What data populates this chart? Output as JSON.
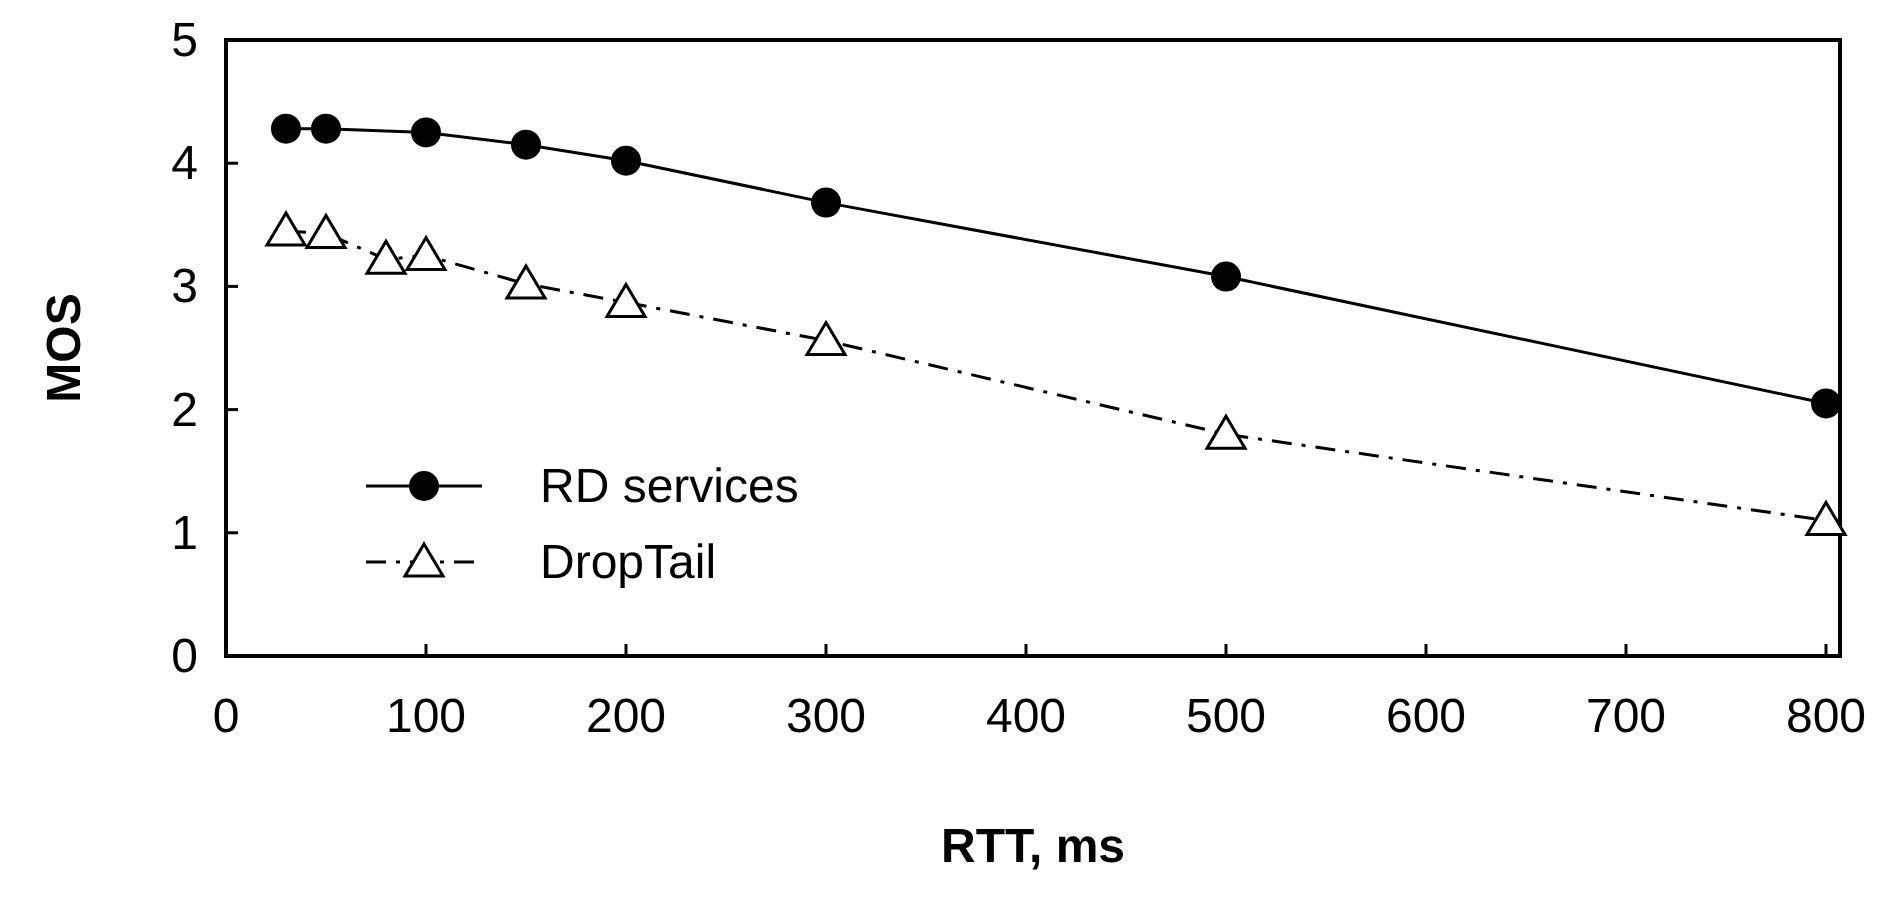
{
  "chart_data": {
    "type": "line",
    "xlabel": "RTT, ms",
    "ylabel": "MOS",
    "xlim": [
      0,
      807
    ],
    "xticks": [
      0,
      100,
      200,
      300,
      400,
      500,
      600,
      700,
      800
    ],
    "ylim": [
      0,
      5
    ],
    "yticks": [
      0,
      1,
      2,
      3,
      4,
      5
    ],
    "grid": false,
    "legend": "bottom left",
    "series": [
      {
        "name": "RD services",
        "color": "#000000",
        "marker": "circle",
        "line_style": "solid",
        "x": [
          30,
          50,
          100,
          150,
          200,
          300,
          500,
          800
        ],
        "values": [
          4.28,
          4.28,
          4.25,
          4.15,
          4.02,
          3.68,
          3.08,
          2.05
        ]
      },
      {
        "name": "DropTail",
        "color": "#000000",
        "marker": "triangle",
        "line_style": "dashed",
        "x": [
          30,
          50,
          80,
          100,
          150,
          200,
          300,
          500,
          800
        ],
        "values": [
          3.45,
          3.43,
          3.22,
          3.25,
          3.02,
          2.87,
          2.56,
          1.8,
          1.1
        ]
      }
    ]
  }
}
